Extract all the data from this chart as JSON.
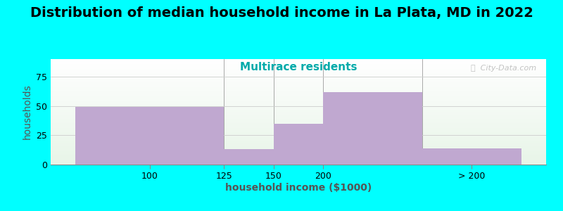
{
  "title": "Distribution of median household income in La Plata, MD in 2022",
  "subtitle": "Multirace residents",
  "subtitle_color": "#00aaaa",
  "xlabel": "household income ($1000)",
  "ylabel": "households",
  "bar_left_edges": [
    0,
    3,
    4,
    5,
    7
  ],
  "bar_widths": [
    3,
    1,
    1,
    2,
    2
  ],
  "values": [
    49,
    13,
    35,
    62,
    14
  ],
  "tick_positions": [
    1.5,
    3,
    4,
    5,
    8
  ],
  "tick_labels": [
    "100",
    "125",
    "150",
    "200",
    "> 200"
  ],
  "bar_color": "#c0a8d0",
  "background_color": "#00ffff",
  "ylim": [
    0,
    90
  ],
  "yticks": [
    0,
    25,
    50,
    75
  ],
  "watermark": "ⓘ  City-Data.com",
  "title_fontsize": 14,
  "subtitle_fontsize": 11,
  "label_fontsize": 10,
  "tick_fontsize": 9
}
